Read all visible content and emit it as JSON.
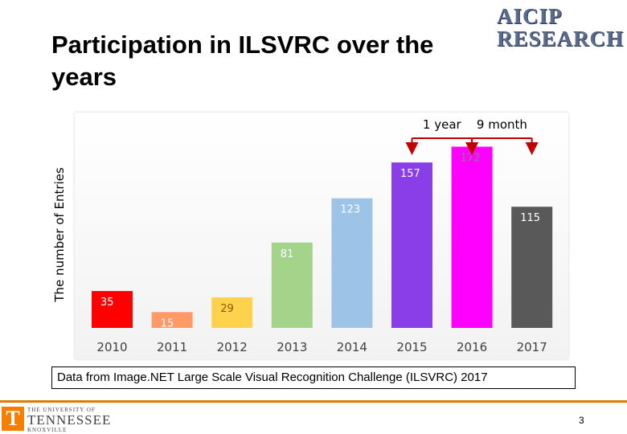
{
  "slide": {
    "title": "Participation in ILSVRC over the years",
    "caption": "Data from Image.NET Large Scale Visual Recognition Challenge (ILSVRC) 2017",
    "page_number": "3"
  },
  "logo": {
    "line1": "AICIP",
    "line2": "RESEARCH"
  },
  "footer_logo": {
    "letter": "T",
    "line1": "THE UNIVERSITY OF",
    "line2": "TENNESSEE",
    "line3": "KNOXVILLE"
  },
  "chart_data": {
    "type": "bar",
    "title": "",
    "xlabel": "",
    "ylabel": "The number of Entries",
    "ylim": [
      0,
      180
    ],
    "grid": false,
    "categories": [
      "2010",
      "2011",
      "2012",
      "2013",
      "2014",
      "2015",
      "2016",
      "2017"
    ],
    "values": [
      35,
      15,
      29,
      81,
      123,
      157,
      172,
      115
    ],
    "colors": [
      "#ff0000",
      "#ff9966",
      "#ffd24d",
      "#a4d38a",
      "#9dc3e6",
      "#8a3ee8",
      "#ff00ff",
      "#595959"
    ],
    "label_colors": [
      "#ffffff",
      "#ffffff",
      "#7f6000",
      "#ffffff",
      "#ffffff",
      "#ffffff",
      "#7f7f7f",
      "#ffffff"
    ],
    "annotations": [
      {
        "text": "1 year",
        "between": [
          "2015",
          "2016"
        ]
      },
      {
        "text": "9 month",
        "between": [
          "2016",
          "2017"
        ]
      }
    ],
    "annotation_color": "#c00000"
  }
}
